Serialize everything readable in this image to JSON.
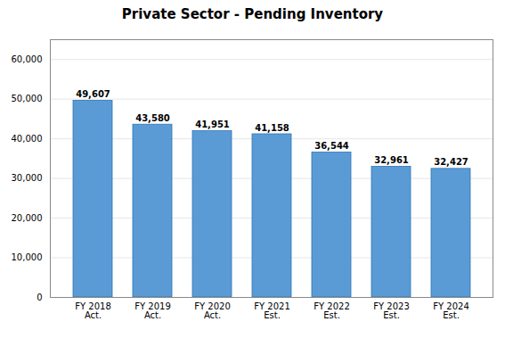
{
  "chart_data": {
    "type": "bar",
    "title": "Private Sector - Pending Inventory",
    "categories": [
      "FY 2018\nAct.",
      "FY 2019\nAct.",
      "FY 2020\nAct.",
      "FY 2021\nEst.",
      "FY 2022\nEst.",
      "FY 2023\nEst.",
      "FY 2024\nEst."
    ],
    "values": [
      49607,
      43580,
      41951,
      41158,
      36544,
      32961,
      32427
    ],
    "value_labels": [
      "49,607",
      "43,580",
      "41,951",
      "41,158",
      "36,544",
      "32,961",
      "32,427"
    ],
    "color": "#5b9bd5",
    "ylim": [
      0,
      65000
    ],
    "yticks": [
      0,
      {
        "value": 10000,
        "label": "10,000"
      },
      {
        "value": 20000,
        "label": "20,000"
      },
      {
        "value": 30000,
        "label": "30,000"
      },
      {
        "value": 40000,
        "label": "40,000"
      },
      {
        "value": 50000,
        "label": "50,000"
      },
      {
        "value": 60000,
        "label": "60,000"
      }
    ],
    "grid": true,
    "data_labels": true
  }
}
